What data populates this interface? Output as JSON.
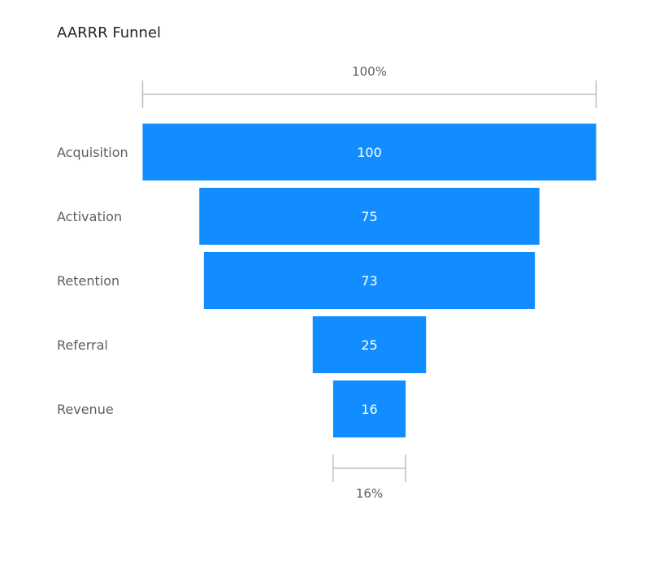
{
  "title": "AARRR Funnel",
  "colors": {
    "bar": "#118DFF",
    "bar_label": "#ffffff",
    "category_label": "#605E5C",
    "bracket": "#BEBEBE",
    "bracket_label": "#605E5C"
  },
  "chart_data": {
    "type": "funnel",
    "title": "AARRR Funnel",
    "categories": [
      "Acquisition",
      "Activation",
      "Retention",
      "Referral",
      "Revenue"
    ],
    "values": [
      100,
      75,
      73,
      25,
      16
    ],
    "top_percent_label": "100%",
    "bottom_percent_label": "16%"
  }
}
